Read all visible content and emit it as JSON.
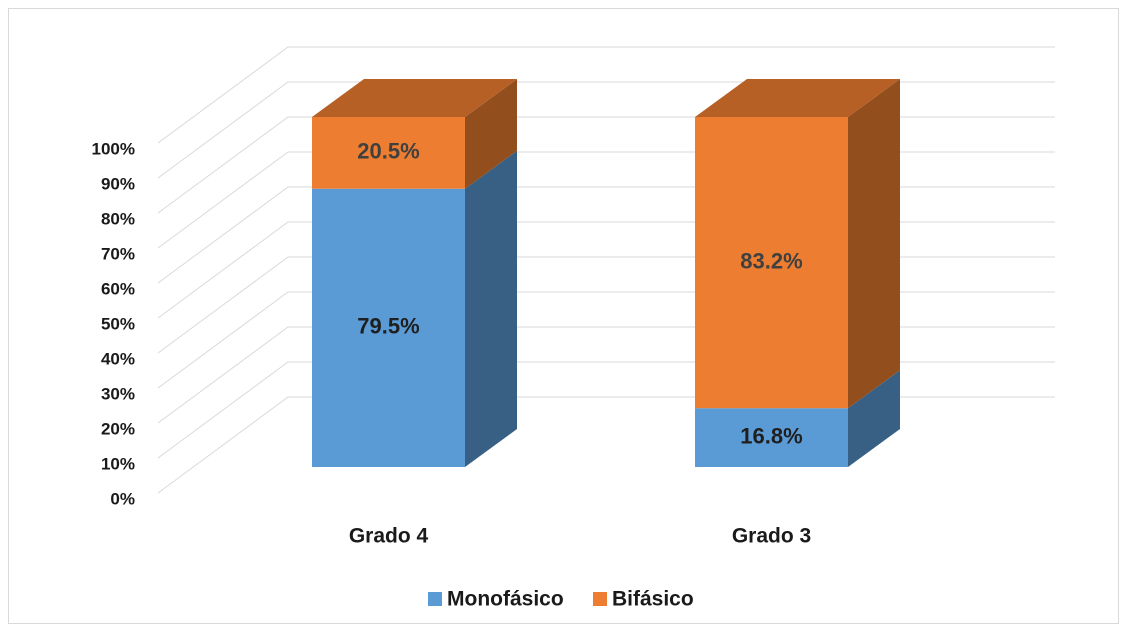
{
  "chart_data": {
    "type": "bar3d_stacked",
    "categories": [
      "Grado 4",
      "Grado 3"
    ],
    "series": [
      {
        "name": "Monofásico",
        "color": "#5b9bd5",
        "values": [
          79.5,
          16.8
        ],
        "value_labels": [
          "79.5%",
          "16.8%"
        ]
      },
      {
        "name": "Bifásico",
        "color": "#ed7d31",
        "values": [
          20.5,
          83.2
        ],
        "value_labels": [
          "20.5%",
          "83.2%"
        ]
      }
    ],
    "ylim": [
      0,
      100
    ],
    "yticks": [
      {
        "value": 0,
        "label": "0%"
      },
      {
        "value": 10,
        "label": "10%"
      },
      {
        "value": 20,
        "label": "20%"
      },
      {
        "value": 30,
        "label": "30%"
      },
      {
        "value": 40,
        "label": "40%"
      },
      {
        "value": 50,
        "label": "50%"
      },
      {
        "value": 60,
        "label": "60%"
      },
      {
        "value": 70,
        "label": "70%"
      },
      {
        "value": 80,
        "label": "80%"
      },
      {
        "value": 90,
        "label": "90%"
      },
      {
        "value": 100,
        "label": "100%"
      }
    ],
    "grid": true,
    "legend": "bottom"
  }
}
